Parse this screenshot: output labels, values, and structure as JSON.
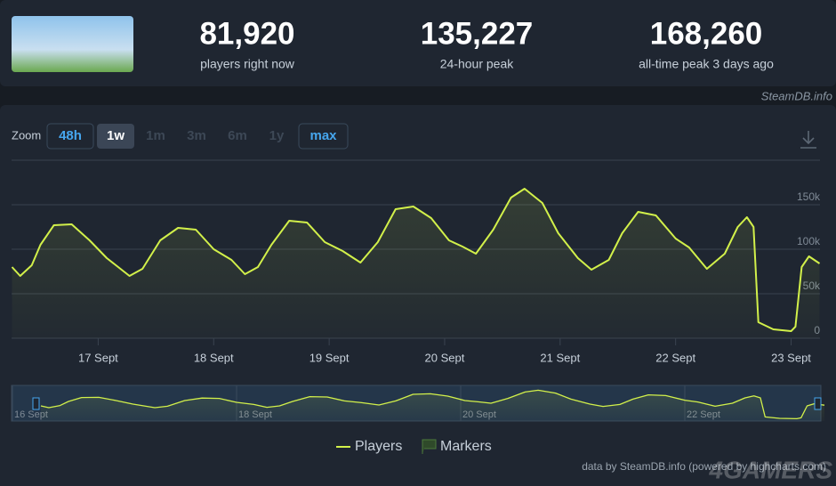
{
  "header": {
    "stats": [
      {
        "value": "81,920",
        "label": "players right now"
      },
      {
        "value": "135,227",
        "label": "24-hour peak"
      },
      {
        "value": "168,260",
        "label": "all-time peak 3 days ago"
      }
    ],
    "source": "SteamDB.info"
  },
  "zoom": {
    "label": "Zoom",
    "buttons": [
      "48h",
      "1w",
      "1m",
      "3m",
      "6m",
      "1y",
      "max"
    ]
  },
  "chart_data": {
    "type": "line",
    "x": [
      6.1,
      7.8,
      10.2,
      12,
      14.8,
      18.5,
      22.2,
      25.8,
      30.5,
      33.2,
      36.9,
      40.6,
      44.3,
      48,
      51.7,
      54.5,
      57.2,
      60,
      63.7,
      67.4,
      71.1,
      74.8,
      78.5,
      82.1,
      85.8,
      89.5,
      93.2,
      96.9,
      99.7,
      102.5,
      106.1,
      109.8,
      112.6,
      116.3,
      119.6,
      123.7,
      126.5,
      130.1,
      132.9,
      136.2,
      139.9,
      144,
      146.8,
      150.5,
      154.2,
      156.9,
      158.8,
      160.2,
      161.2,
      164.3,
      168,
      168.9,
      170.2,
      171.7,
      173.9
    ],
    "series": [
      {
        "name": "Players",
        "color": "#d2f04a",
        "values": [
          80000,
          70000,
          82000,
          105000,
          127000,
          128000,
          110000,
          90000,
          70000,
          78000,
          110000,
          124000,
          122000,
          100000,
          88000,
          72000,
          80000,
          105000,
          132000,
          130000,
          108000,
          98000,
          85000,
          108000,
          145000,
          148000,
          135000,
          110000,
          103000,
          95000,
          122000,
          158000,
          168000,
          152000,
          118000,
          90000,
          77000,
          88000,
          118000,
          142000,
          138000,
          112000,
          102000,
          78000,
          95000,
          125000,
          136000,
          125000,
          18000,
          10000,
          8000,
          13000,
          80000,
          92000,
          84000
        ]
      }
    ],
    "xlim": [
      6,
      174
    ],
    "xticks": [
      {
        "value": 24,
        "label": "17 Sept"
      },
      {
        "value": 48,
        "label": "18 Sept"
      },
      {
        "value": 72,
        "label": "19 Sept"
      },
      {
        "value": 96,
        "label": "20 Sept"
      },
      {
        "value": 120,
        "label": "21 Sept"
      },
      {
        "value": 144,
        "label": "22 Sept"
      },
      {
        "value": 168,
        "label": "23 Sept"
      }
    ],
    "ylim": [
      0,
      200000
    ],
    "yticks": [
      0,
      {
        "value": 50000,
        "label": "50k"
      },
      {
        "value": 100000,
        "label": "100k"
      },
      {
        "value": 150000,
        "label": "150k"
      }
    ],
    "grid": true,
    "markers_label": "Markers",
    "navigator": {
      "ticks": [
        {
          "value": 0,
          "label": "16 Sept"
        },
        {
          "value": 48,
          "label": "18 Sept"
        },
        {
          "value": 96,
          "label": "20 Sept"
        },
        {
          "value": 144,
          "label": "22 Sept"
        }
      ]
    },
    "credits": "data by SteamDB.info (powered by highcharts.com)"
  },
  "watermark": "4GAMERS"
}
